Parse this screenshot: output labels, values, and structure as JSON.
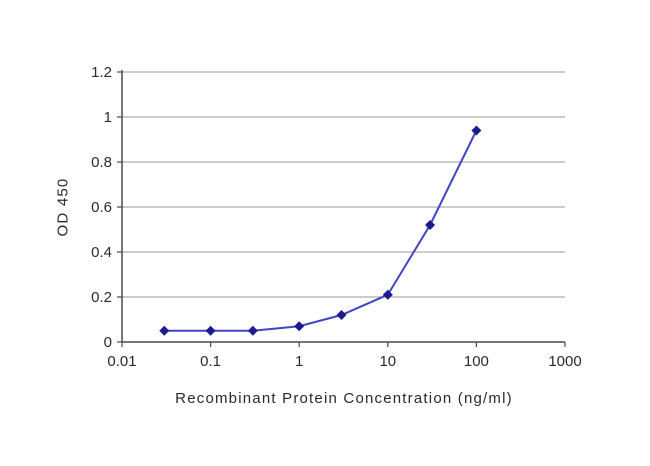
{
  "chart_data": {
    "type": "line",
    "title": "",
    "xlabel": "Recombinant Protein Concentration (ng/ml)",
    "ylabel": "OD 450",
    "x_scale": "log",
    "xlim": [
      0.01,
      1000
    ],
    "ylim": [
      0,
      1.2
    ],
    "x_ticks": [
      "0.01",
      "0.1",
      "1",
      "10",
      "100",
      "1000"
    ],
    "y_ticks": [
      "0",
      "0.2",
      "0.4",
      "0.6",
      "0.8",
      "1",
      "1.2"
    ],
    "grid": true,
    "legend": false,
    "series": [
      {
        "name": "OD 450",
        "marker": "diamond",
        "x": [
          0.03,
          0.1,
          0.3,
          1,
          3,
          10,
          30,
          100
        ],
        "y": [
          0.05,
          0.05,
          0.05,
          0.07,
          0.12,
          0.21,
          0.52,
          0.94
        ]
      }
    ]
  },
  "colors": {
    "background": "#ffffff",
    "line": "#4444c4",
    "marker": "#1b1b8e",
    "grid": "#9a9aa0",
    "axis": "#4a4a4e",
    "tick_text": "#2a2a2a"
  }
}
